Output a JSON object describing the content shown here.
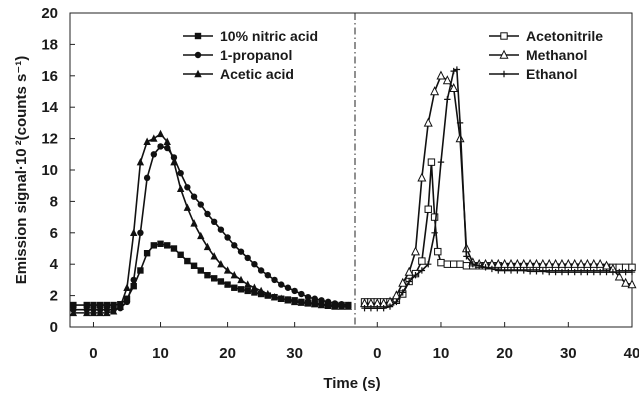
{
  "chart_data": {
    "type": "line",
    "ylabel": "Emission signal·10 ²(counts s⁻¹)",
    "xlabel": "Time (s)",
    "ylim": [
      0,
      20
    ],
    "y_ticks": [
      "0",
      "2",
      "4",
      "6",
      "8",
      "10",
      "12",
      "14",
      "16",
      "18",
      "20"
    ],
    "divider_style": "dash-dot vertical line between panels",
    "grid": false,
    "panels": [
      {
        "name": "left",
        "xlim": [
          -3.5,
          39
        ],
        "x_ticks": [
          "0",
          "10",
          "20",
          "30"
        ],
        "legend_placement": "top-center",
        "series": [
          {
            "name": "10% nitric acid",
            "marker": "filled-square",
            "color": "#111111",
            "x": [
              -3,
              -1,
              0,
              1,
              2,
              3,
              4,
              5,
              6,
              7,
              8,
              9,
              10,
              11,
              12,
              13,
              14,
              15,
              16,
              17,
              18,
              19,
              20,
              21,
              22,
              23,
              24,
              25,
              26,
              27,
              28,
              29,
              30,
              31,
              32,
              33,
              34,
              35,
              36,
              37,
              38
            ],
            "y": [
              1.4,
              1.4,
              1.4,
              1.4,
              1.4,
              1.4,
              1.45,
              1.8,
              2.6,
              3.6,
              4.7,
              5.2,
              5.3,
              5.2,
              5.0,
              4.6,
              4.2,
              3.9,
              3.6,
              3.3,
              3.1,
              2.9,
              2.7,
              2.5,
              2.4,
              2.3,
              2.2,
              2.1,
              2.0,
              1.9,
              1.8,
              1.75,
              1.7,
              1.6,
              1.55,
              1.5,
              1.45,
              1.4,
              1.4,
              1.4,
              1.4
            ]
          },
          {
            "name": "1-propanol",
            "marker": "filled-circle",
            "color": "#111111",
            "x": [
              -3,
              -1,
              0,
              1,
              2,
              3,
              4,
              5,
              6,
              7,
              8,
              9,
              10,
              11,
              12,
              13,
              14,
              15,
              16,
              17,
              18,
              19,
              20,
              21,
              22,
              23,
              24,
              25,
              26,
              27,
              28,
              29,
              30,
              31,
              32,
              33,
              34,
              35,
              36,
              37,
              38
            ],
            "y": [
              1.1,
              1.1,
              1.1,
              1.1,
              1.1,
              1.1,
              1.2,
              1.6,
              3.0,
              6.0,
              9.5,
              11.0,
              11.5,
              11.4,
              10.8,
              9.8,
              8.9,
              8.3,
              7.8,
              7.2,
              6.7,
              6.2,
              5.7,
              5.2,
              4.8,
              4.4,
              4.0,
              3.6,
              3.3,
              3.0,
              2.7,
              2.5,
              2.3,
              2.1,
              1.9,
              1.8,
              1.7,
              1.6,
              1.5,
              1.45,
              1.4
            ]
          },
          {
            "name": "Acetic acid",
            "marker": "filled-triangle",
            "color": "#111111",
            "x": [
              -3,
              -1,
              0,
              1,
              2,
              3,
              4,
              5,
              6,
              7,
              8,
              9,
              10,
              11,
              12,
              13,
              14,
              15,
              16,
              17,
              18,
              19,
              20,
              21,
              22,
              23,
              24,
              25,
              26,
              27,
              28,
              29,
              30,
              31,
              32,
              33,
              34,
              35,
              36,
              37,
              38
            ],
            "y": [
              0.9,
              0.9,
              0.9,
              0.9,
              0.9,
              1.0,
              1.3,
              2.5,
              6.0,
              10.5,
              11.8,
              12.0,
              12.3,
              11.8,
              10.5,
              8.8,
              7.6,
              6.6,
              5.8,
              5.1,
              4.5,
              4.0,
              3.6,
              3.3,
              3.0,
              2.7,
              2.5,
              2.3,
              2.1,
              1.9,
              1.8,
              1.7,
              1.6,
              1.55,
              1.5,
              1.45,
              1.4,
              1.35,
              1.3,
              1.3,
              1.3
            ]
          }
        ]
      },
      {
        "name": "right",
        "xlim": [
          -3.5,
          40
        ],
        "x_ticks": [
          "0",
          "10",
          "20",
          "30",
          "40"
        ],
        "legend_placement": "top-right",
        "series": [
          {
            "name": "Acetonitrile",
            "marker": "open-square",
            "color": "#111111",
            "x": [
              -2,
              -1,
              0,
              1,
              2,
              3,
              4,
              5,
              6,
              7,
              8,
              8.5,
              9,
              9.5,
              10,
              11,
              12,
              13,
              14,
              15,
              16,
              17,
              18,
              19,
              20,
              21,
              22,
              23,
              24,
              25,
              26,
              27,
              28,
              29,
              30,
              31,
              32,
              33,
              34,
              35,
              36,
              37,
              38,
              39,
              40
            ],
            "y": [
              1.6,
              1.6,
              1.6,
              1.6,
              1.6,
              1.7,
              2.1,
              2.9,
              3.4,
              4.2,
              7.5,
              10.5,
              7.0,
              4.8,
              4.1,
              4.0,
              4.0,
              4.0,
              3.9,
              3.9,
              3.9,
              3.9,
              3.9,
              3.9,
              3.85,
              3.85,
              3.85,
              3.85,
              3.85,
              3.85,
              3.8,
              3.8,
              3.8,
              3.8,
              3.8,
              3.8,
              3.8,
              3.8,
              3.8,
              3.8,
              3.8,
              3.8,
              3.8,
              3.8,
              3.8
            ]
          },
          {
            "name": "Methanol",
            "marker": "open-triangle",
            "color": "#111111",
            "x": [
              -2,
              -1,
              0,
              1,
              2,
              3,
              4,
              5,
              6,
              7,
              8,
              9,
              10,
              11,
              12,
              13,
              14,
              15,
              16,
              17,
              18,
              19,
              20,
              21,
              22,
              23,
              24,
              25,
              26,
              27,
              28,
              29,
              30,
              31,
              32,
              33,
              34,
              35,
              36,
              37,
              38,
              39,
              40
            ],
            "y": [
              1.5,
              1.5,
              1.5,
              1.5,
              1.6,
              2.0,
              2.8,
              3.5,
              4.8,
              9.5,
              13.0,
              15.0,
              16.0,
              15.7,
              15.2,
              12.0,
              5.0,
              4.1,
              4.0,
              4.0,
              4.0,
              4.0,
              4.0,
              4.0,
              4.0,
              4.0,
              4.0,
              4.0,
              4.0,
              4.0,
              4.0,
              4.0,
              4.0,
              4.0,
              4.0,
              4.0,
              4.0,
              4.0,
              3.9,
              3.7,
              3.2,
              2.8,
              2.7
            ]
          },
          {
            "name": "Ethanol",
            "marker": "plus",
            "color": "#111111",
            "x": [
              -2,
              -1,
              0,
              1,
              2,
              3,
              4,
              5,
              6,
              7,
              8,
              9,
              10,
              11,
              12,
              12.5,
              13,
              14,
              15,
              16,
              17,
              18,
              19,
              20,
              21,
              22,
              23,
              24,
              25,
              26,
              27,
              28,
              29,
              30,
              31,
              32,
              33,
              34,
              35,
              36,
              37,
              38,
              39,
              40
            ],
            "y": [
              1.2,
              1.2,
              1.2,
              1.2,
              1.3,
              1.6,
              2.2,
              2.9,
              3.3,
              3.6,
              4.0,
              6.0,
              10.5,
              14.5,
              16.3,
              16.4,
              13.0,
              4.5,
              4.0,
              3.9,
              3.8,
              3.7,
              3.6,
              3.6,
              3.6,
              3.6,
              3.6,
              3.55,
              3.55,
              3.55,
              3.5,
              3.5,
              3.5,
              3.5,
              3.5,
              3.5,
              3.5,
              3.5,
              3.5,
              3.5,
              3.5,
              3.5,
              3.5,
              3.5
            ]
          }
        ]
      }
    ]
  }
}
